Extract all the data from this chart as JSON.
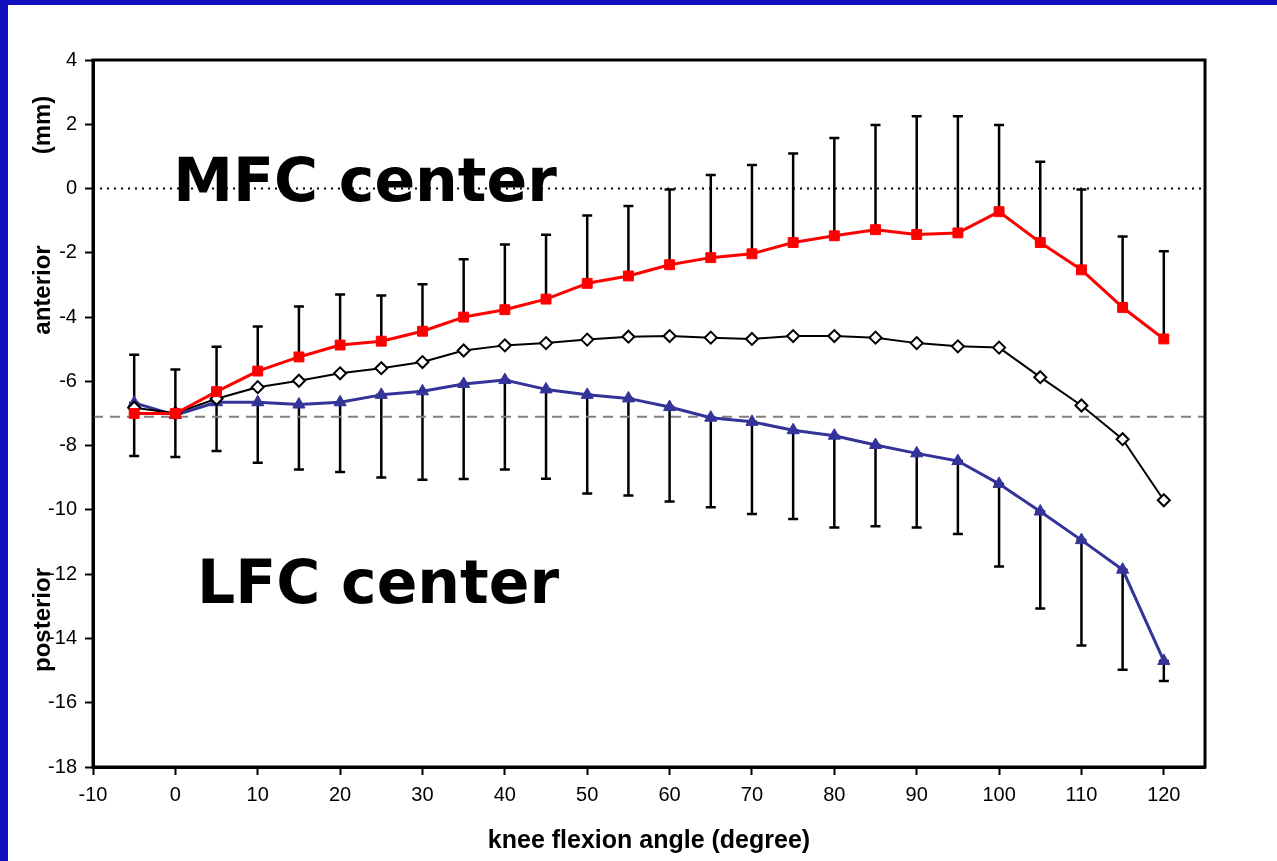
{
  "chart_data": {
    "type": "line",
    "xlabel": "knee flexion angle (degree)",
    "ylabel": "(mm)",
    "annotations": [
      "anterior",
      "posterior"
    ],
    "x": [
      -5,
      0,
      5,
      10,
      15,
      20,
      25,
      30,
      35,
      40,
      45,
      50,
      55,
      60,
      65,
      70,
      75,
      80,
      85,
      90,
      95,
      100,
      105,
      110,
      115,
      120
    ],
    "series": [
      {
        "name": "MFC center",
        "color": "#ff0000",
        "marker": "square",
        "values": [
          -7.0,
          -7.0,
          -6.32,
          -5.68,
          -5.24,
          -4.87,
          -4.75,
          -4.44,
          -4.0,
          -3.77,
          -3.44,
          -2.95,
          -2.72,
          -2.37,
          -2.15,
          -2.03,
          -1.68,
          -1.47,
          -1.28,
          -1.43,
          -1.38,
          -0.72,
          -1.68,
          -2.53,
          -3.7,
          -4.68
        ],
        "errors": [
          [
            -7.0,
            -5.17
          ],
          [
            -7.0,
            -5.63
          ],
          [
            -6.32,
            -4.92
          ],
          [
            -5.68,
            -4.29
          ],
          [
            -5.24,
            -3.67
          ],
          [
            -4.87,
            -3.3
          ],
          [
            -4.75,
            -3.33
          ],
          [
            -4.44,
            -2.98
          ],
          [
            -4.0,
            -2.2
          ],
          [
            -3.77,
            -1.74
          ],
          [
            -3.44,
            -1.44
          ],
          [
            -2.95,
            -0.84
          ],
          [
            -2.72,
            -0.54
          ],
          [
            -2.37,
            -0.03
          ],
          [
            -2.15,
            0.42
          ],
          [
            -2.03,
            0.73
          ],
          [
            -1.68,
            1.09
          ],
          [
            -1.47,
            1.57
          ],
          [
            -1.28,
            1.98
          ],
          [
            -1.43,
            2.25
          ],
          [
            -1.38,
            2.25
          ],
          [
            -0.72,
            1.98
          ],
          [
            -1.68,
            0.83
          ],
          [
            -2.53,
            -0.03
          ],
          [
            -3.7,
            -1.49
          ],
          [
            -4.68,
            -1.95
          ]
        ]
      },
      {
        "color": "#000000",
        "marker": "diamond",
        "values": [
          -6.82,
          -6.99,
          -6.54,
          -6.18,
          -5.98,
          -5.75,
          -5.59,
          -5.4,
          -5.04,
          -4.88,
          -4.81,
          -4.7,
          -4.61,
          -4.59,
          -4.64,
          -4.68,
          -4.59,
          -4.59,
          -4.64,
          -4.81,
          -4.91,
          -4.95,
          -5.87,
          -6.75,
          -7.8,
          -9.7
        ]
      },
      {
        "name": "LFC center",
        "color": "#333399",
        "marker": "triangle",
        "values": [
          -6.67,
          -7.05,
          -6.65,
          -6.65,
          -6.72,
          -6.65,
          -6.42,
          -6.31,
          -6.08,
          -5.96,
          -6.25,
          -6.42,
          -6.53,
          -6.8,
          -7.13,
          -7.26,
          -7.52,
          -7.69,
          -7.98,
          -8.24,
          -8.48,
          -9.19,
          -10.05,
          -10.94,
          -11.86,
          -14.7
        ],
        "errors": [
          [
            -8.32,
            -6.67
          ],
          [
            -8.35,
            -7.05
          ],
          [
            -8.17,
            -6.65
          ],
          [
            -8.53,
            -6.65
          ],
          [
            -8.74,
            -6.72
          ],
          [
            -8.82,
            -6.65
          ],
          [
            -8.99,
            -6.42
          ],
          [
            -9.06,
            -6.31
          ],
          [
            -9.04,
            -6.08
          ],
          [
            -8.74,
            -5.96
          ],
          [
            -9.03,
            -6.25
          ],
          [
            -9.49,
            -6.42
          ],
          [
            -9.55,
            -6.53
          ],
          [
            -9.74,
            -6.8
          ],
          [
            -9.92,
            -7.13
          ],
          [
            -10.13,
            -7.26
          ],
          [
            -10.28,
            -7.52
          ],
          [
            -10.55,
            -7.69
          ],
          [
            -10.51,
            -7.98
          ],
          [
            -10.55,
            -8.24
          ],
          [
            -10.75,
            -8.48
          ],
          [
            -11.76,
            -9.19
          ],
          [
            -13.07,
            -10.05
          ],
          [
            -14.22,
            -10.94
          ],
          [
            -14.97,
            -11.86
          ],
          [
            -15.32,
            -14.7
          ]
        ]
      }
    ],
    "xlim": [
      -10,
      125
    ],
    "xticks": [
      -10,
      0,
      10,
      20,
      30,
      40,
      50,
      60,
      70,
      80,
      90,
      100,
      110,
      120
    ],
    "ylim": [
      -18,
      4
    ],
    "yticks": [
      -18,
      -16,
      -14,
      -12,
      -10,
      -8,
      -6,
      -4,
      -2,
      0,
      2,
      4
    ],
    "ref_lines": [
      {
        "axis": "y",
        "value": 0,
        "color": "#000000",
        "line_style": "dotted"
      },
      {
        "axis": "y",
        "value": -7.1,
        "color": "#808080",
        "line_style": "dashed"
      }
    ],
    "grid": false,
    "legend": false
  }
}
